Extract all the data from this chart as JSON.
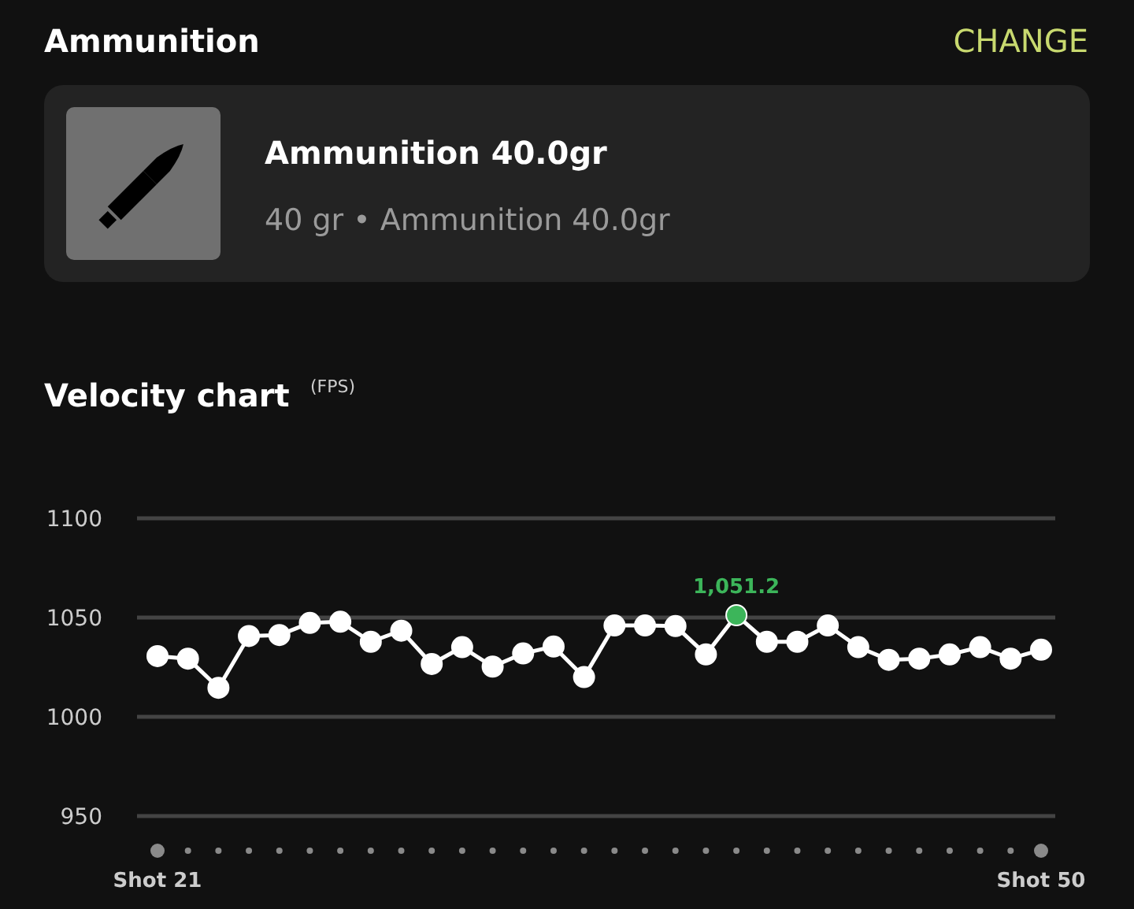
{
  "chart_data": {
    "type": "line",
    "title": "Velocity chart",
    "annotations": [
      "Ammunition",
      "CHANGE",
      "Ammunition 40.0gr",
      "40 gr • Ammunition 40.0gr",
      "(FPS)"
    ],
    "categories": [
      "Shot 21",
      null,
      null,
      null,
      null,
      null,
      null,
      null,
      null,
      null,
      null,
      null,
      null,
      null,
      null,
      null,
      null,
      null,
      null,
      null,
      null,
      null,
      null,
      null,
      null,
      null,
      null,
      null,
      null,
      "Shot 50"
    ],
    "values": [
      1030.6,
      1029.3,
      1014.6,
      1040.7,
      1041.2,
      1047.3,
      1047.9,
      1037.8,
      1043.4,
      1026.6,
      1035.1,
      1025.3,
      1031.9,
      1035.4,
      1020,
      1046,
      1046,
      1045.7,
      1031.4,
      1051.2,
      1037.8,
      1037.8,
      1046,
      1035.1,
      1028.7,
      1029.3,
      1031.4,
      1035.1,
      1029.3,
      1033.8
    ],
    "color": "#ffffff",
    "colors": [
      "#ffffff",
      "#ffffff",
      "#ffffff",
      "#ffffff",
      "#ffffff",
      "#ffffff",
      "#ffffff",
      "#ffffff",
      "#ffffff",
      "#ffffff",
      "#ffffff",
      "#ffffff",
      "#ffffff",
      "#ffffff",
      "#ffffff",
      "#ffffff",
      "#ffffff",
      "#ffffff",
      "#ffffff",
      "#3cb55a",
      "#ffffff",
      "#ffffff",
      "#ffffff",
      "#ffffff",
      "#ffffff",
      "#ffffff",
      "#ffffff",
      "#ffffff",
      "#ffffff",
      "#ffffff"
    ],
    "value_labels": [
      null,
      null,
      null,
      null,
      null,
      null,
      null,
      null,
      null,
      null,
      null,
      null,
      null,
      null,
      null,
      null,
      null,
      null,
      null,
      "1,051.2",
      null,
      null,
      null,
      null,
      null,
      null,
      null,
      null,
      null,
      null
    ],
    "ylim": [
      950,
      1100
    ],
    "yticks": [
      950,
      1000,
      1050,
      1100
    ],
    "grid": "y",
    "marker": "circle",
    "line_style": "solid"
  }
}
